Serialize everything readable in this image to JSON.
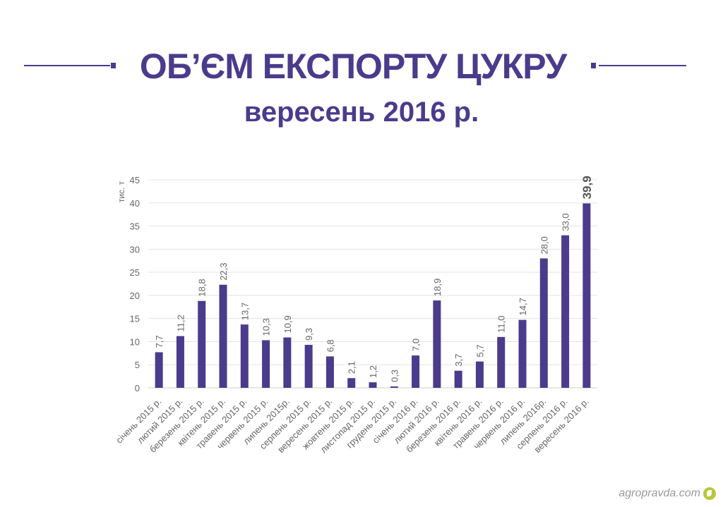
{
  "header": {
    "title": "ОБ’ЄМ ЕКСПОРТУ ЦУКРУ",
    "subtitle": "вересень 2016 р."
  },
  "watermark": "agropravda.com",
  "colors": {
    "accent": "#4b3b8c",
    "bar": "#4b3b8c",
    "grid": "#e3e3e3",
    "tick": "#666666"
  },
  "chart_data": {
    "type": "bar",
    "ylabel": "тис. т",
    "ylim": [
      0,
      45
    ],
    "yticks": [
      0,
      5,
      10,
      15,
      20,
      25,
      30,
      35,
      40,
      45
    ],
    "grid": true,
    "categories": [
      "січень 2015 р.",
      "лютий 2015 р.",
      "березень 2015 р.",
      "квітень 2015 р.",
      "травень 2015 р.",
      "червень 2015 р.",
      "липень 2015р.",
      "серпень 2015 р.",
      "вересень 2015 р.",
      "жовтень 2015 р.",
      "листопад 2015 р.",
      "грудень 2015 р.",
      "січень 2016 р.",
      "лютий 2016 р.",
      "березень 2016 р.",
      "квітень 2016 р.",
      "травень 2016 р.",
      "червень 2016 р.",
      "липень 2016р.",
      "серпень 2016 р.",
      "вересень 2016 р."
    ],
    "values": [
      7.7,
      11.2,
      18.8,
      22.3,
      13.7,
      10.3,
      10.9,
      9.3,
      6.8,
      2.1,
      1.2,
      0.3,
      7.0,
      18.9,
      3.7,
      5.7,
      11.0,
      14.7,
      28.0,
      33.0,
      39.9
    ],
    "value_labels": [
      "7,7",
      "11,2",
      "18,8",
      "22,3",
      "13,7",
      "10,3",
      "10,9",
      "9,3",
      "6,8",
      "2,1",
      "1,2",
      "0,3",
      "7,0",
      "18,9",
      "3,7",
      "5,7",
      "11,0",
      "14,7",
      "28,0",
      "33,0",
      "39,9"
    ],
    "highlight_index": 20
  }
}
